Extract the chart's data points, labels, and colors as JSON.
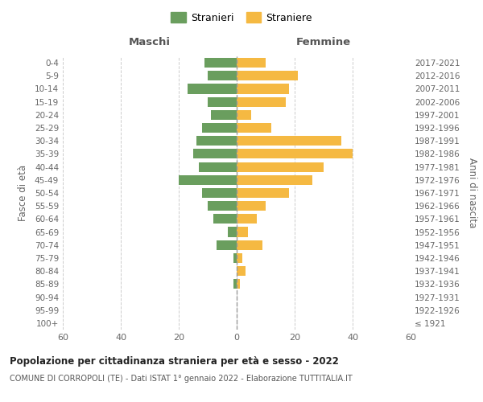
{
  "age_groups": [
    "100+",
    "95-99",
    "90-94",
    "85-89",
    "80-84",
    "75-79",
    "70-74",
    "65-69",
    "60-64",
    "55-59",
    "50-54",
    "45-49",
    "40-44",
    "35-39",
    "30-34",
    "25-29",
    "20-24",
    "15-19",
    "10-14",
    "5-9",
    "0-4"
  ],
  "birth_years": [
    "≤ 1921",
    "1922-1926",
    "1927-1931",
    "1932-1936",
    "1937-1941",
    "1942-1946",
    "1947-1951",
    "1952-1956",
    "1957-1961",
    "1962-1966",
    "1967-1971",
    "1972-1976",
    "1977-1981",
    "1982-1986",
    "1987-1991",
    "1992-1996",
    "1997-2001",
    "2002-2006",
    "2007-2011",
    "2012-2016",
    "2017-2021"
  ],
  "males": [
    0,
    0,
    0,
    1,
    0,
    1,
    7,
    3,
    8,
    10,
    12,
    20,
    13,
    15,
    14,
    12,
    9,
    10,
    17,
    10,
    11
  ],
  "females": [
    0,
    0,
    0,
    1,
    3,
    2,
    9,
    4,
    7,
    10,
    18,
    26,
    30,
    40,
    36,
    12,
    5,
    17,
    18,
    21,
    10
  ],
  "male_color": "#6a9e5e",
  "female_color": "#f5b942",
  "grid_color": "#cccccc",
  "background_color": "#ffffff",
  "title": "Popolazione per cittadinanza straniera per età e sesso - 2022",
  "subtitle": "COMUNE DI CORROPOLI (TE) - Dati ISTAT 1° gennaio 2022 - Elaborazione TUTTITALIA.IT",
  "legend_male": "Stranieri",
  "legend_female": "Straniere",
  "xlabel_left": "Maschi",
  "xlabel_right": "Femmine",
  "ylabel_left": "Fasce di età",
  "ylabel_right": "Anni di nascita",
  "xlim": 60
}
